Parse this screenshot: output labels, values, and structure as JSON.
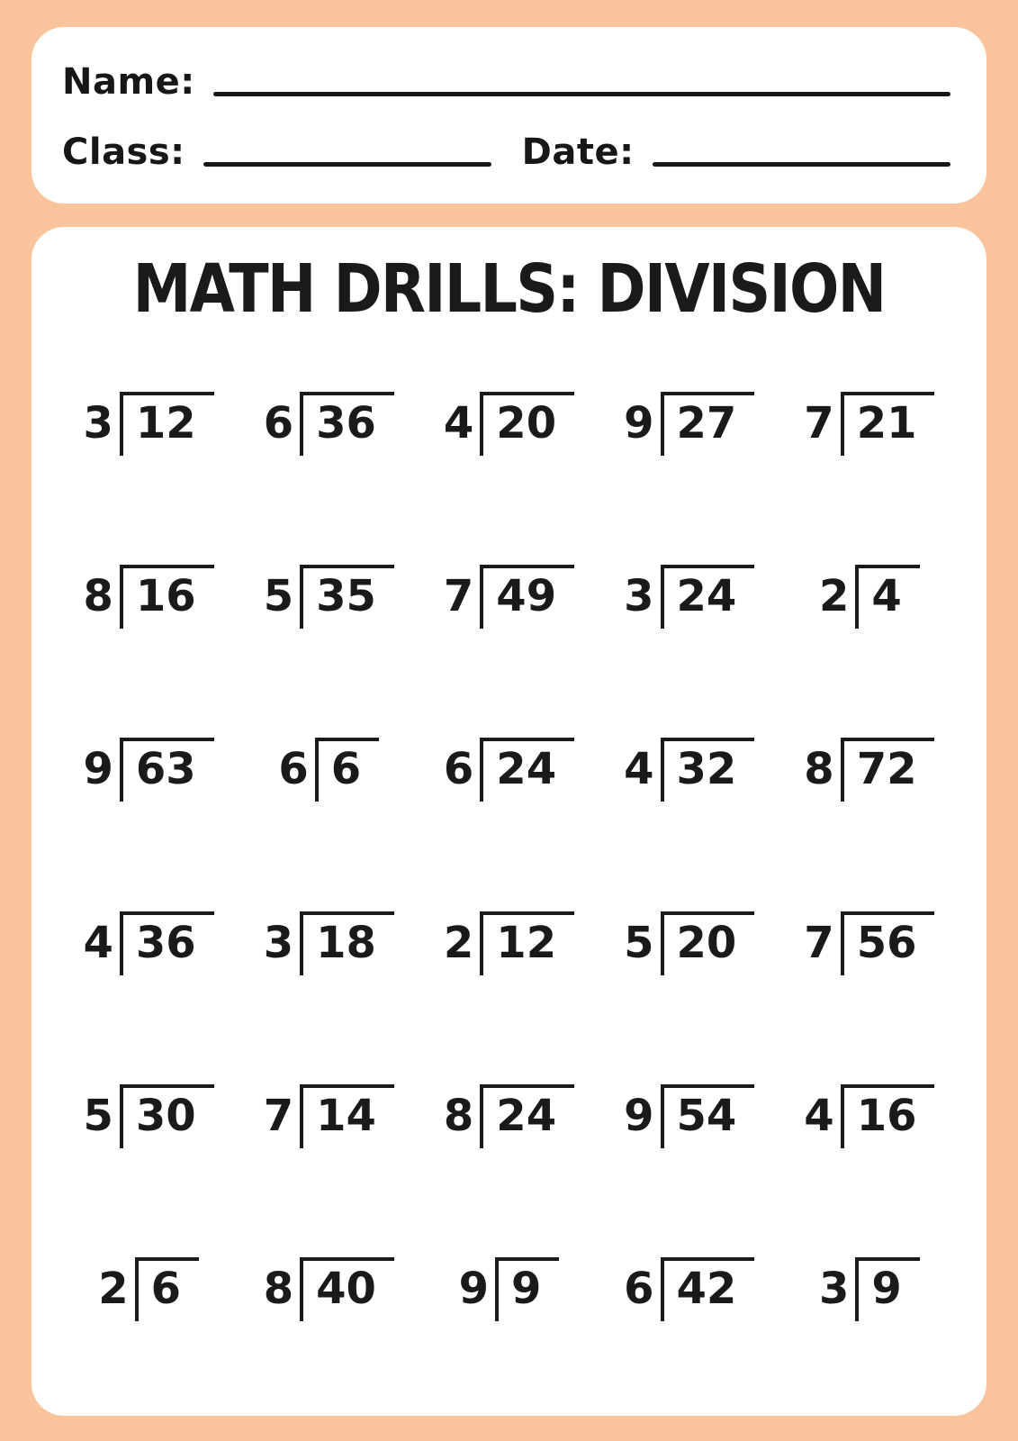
{
  "colors": {
    "background": "#f9c39b",
    "card": "#ffffff",
    "ink": "#1a1a1a"
  },
  "header": {
    "name_label": "Name:",
    "class_label": "Class:",
    "date_label": "Date:"
  },
  "title": "MATH DRILLS: DIVISION",
  "problems": [
    {
      "divisor": "3",
      "dividend": "12"
    },
    {
      "divisor": "6",
      "dividend": "36"
    },
    {
      "divisor": "4",
      "dividend": "20"
    },
    {
      "divisor": "9",
      "dividend": "27"
    },
    {
      "divisor": "7",
      "dividend": "21"
    },
    {
      "divisor": "8",
      "dividend": "16"
    },
    {
      "divisor": "5",
      "dividend": "35"
    },
    {
      "divisor": "7",
      "dividend": "49"
    },
    {
      "divisor": "3",
      "dividend": "24"
    },
    {
      "divisor": "2",
      "dividend": "4"
    },
    {
      "divisor": "9",
      "dividend": "63"
    },
    {
      "divisor": "6",
      "dividend": "6"
    },
    {
      "divisor": "6",
      "dividend": "24"
    },
    {
      "divisor": "4",
      "dividend": "32"
    },
    {
      "divisor": "8",
      "dividend": "72"
    },
    {
      "divisor": "4",
      "dividend": "36"
    },
    {
      "divisor": "3",
      "dividend": "18"
    },
    {
      "divisor": "2",
      "dividend": "12"
    },
    {
      "divisor": "5",
      "dividend": "20"
    },
    {
      "divisor": "7",
      "dividend": "56"
    },
    {
      "divisor": "5",
      "dividend": "30"
    },
    {
      "divisor": "7",
      "dividend": "14"
    },
    {
      "divisor": "8",
      "dividend": "24"
    },
    {
      "divisor": "9",
      "dividend": "54"
    },
    {
      "divisor": "4",
      "dividend": "16"
    },
    {
      "divisor": "2",
      "dividend": "6"
    },
    {
      "divisor": "8",
      "dividend": "40"
    },
    {
      "divisor": "9",
      "dividend": "9"
    },
    {
      "divisor": "6",
      "dividend": "42"
    },
    {
      "divisor": "3",
      "dividend": "9"
    }
  ]
}
